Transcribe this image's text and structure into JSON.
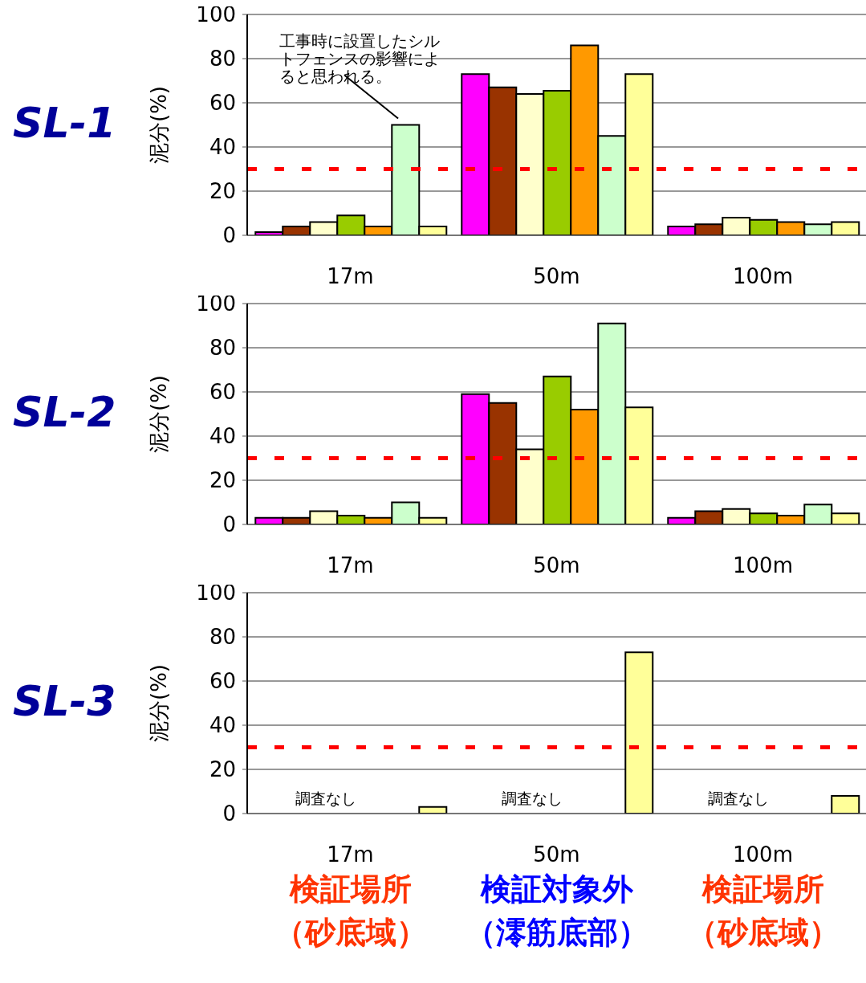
{
  "chart_data": [
    {
      "type": "bar",
      "title": "SL-1",
      "ylabel": "泥分(%)",
      "categories": [
        "17m",
        "50m",
        "100m"
      ],
      "series": [
        {
          "color": "#ff00ff",
          "values": [
            1.5,
            73,
            4
          ]
        },
        {
          "color": "#993300",
          "values": [
            4,
            67,
            5
          ]
        },
        {
          "color": "#ffffcc",
          "values": [
            6,
            64,
            8
          ]
        },
        {
          "color": "#99cc00",
          "values": [
            9,
            65.5,
            7
          ]
        },
        {
          "color": "#ff9900",
          "values": [
            4,
            86,
            6
          ]
        },
        {
          "color": "#ccffcc",
          "values": [
            50,
            45,
            5
          ]
        },
        {
          "color": "#ffff99",
          "values": [
            4,
            73,
            6
          ]
        }
      ],
      "ylim": [
        0,
        100
      ],
      "yticks": [
        0,
        20,
        40,
        60,
        80,
        100
      ],
      "grid": "y",
      "ref_lines": [
        {
          "axis": "y",
          "value": 30,
          "color": "#ff0000",
          "line_style": "dashed"
        }
      ],
      "annotations": [
        "工事時に設置したシルトフェンスの影響によると思われる。"
      ]
    },
    {
      "type": "bar",
      "title": "SL-2",
      "ylabel": "泥分(%)",
      "categories": [
        "17m",
        "50m",
        "100m"
      ],
      "series": [
        {
          "color": "#ff00ff",
          "values": [
            3,
            59,
            3
          ]
        },
        {
          "color": "#993300",
          "values": [
            3,
            55,
            6
          ]
        },
        {
          "color": "#ffffcc",
          "values": [
            6,
            34,
            7
          ]
        },
        {
          "color": "#99cc00",
          "values": [
            4,
            67,
            5
          ]
        },
        {
          "color": "#ff9900",
          "values": [
            3,
            52,
            4
          ]
        },
        {
          "color": "#ccffcc",
          "values": [
            10,
            91,
            9
          ]
        },
        {
          "color": "#ffff99",
          "values": [
            3,
            53,
            5
          ]
        }
      ],
      "ylim": [
        0,
        100
      ],
      "yticks": [
        0,
        20,
        40,
        60,
        80,
        100
      ],
      "grid": "y",
      "ref_lines": [
        {
          "axis": "y",
          "value": 30,
          "color": "#ff0000",
          "line_style": "dashed"
        }
      ]
    },
    {
      "type": "bar",
      "title": "SL-3",
      "ylabel": "泥分(%)",
      "categories": [
        "17m",
        "50m",
        "100m"
      ],
      "series": [
        {
          "color": "#ff00ff",
          "values": [
            null,
            null,
            null
          ]
        },
        {
          "color": "#993300",
          "values": [
            null,
            null,
            null
          ]
        },
        {
          "color": "#ffffcc",
          "values": [
            null,
            null,
            null
          ]
        },
        {
          "color": "#99cc00",
          "values": [
            null,
            null,
            null
          ]
        },
        {
          "color": "#ff9900",
          "values": [
            null,
            null,
            null
          ]
        },
        {
          "color": "#ccffcc",
          "values": [
            null,
            null,
            null
          ]
        },
        {
          "color": "#ffff99",
          "values": [
            3,
            73,
            8
          ]
        }
      ],
      "ylim": [
        0,
        100
      ],
      "yticks": [
        0,
        20,
        40,
        60,
        80,
        100
      ],
      "grid": "y",
      "ref_lines": [
        {
          "axis": "y",
          "value": 30,
          "color": "#ff0000",
          "line_style": "dashed"
        }
      ],
      "annotations": [
        "調査なし",
        "調査なし",
        "調査なし",
        "検証場所（砂底域）",
        "検証対象外（澪筋底部）",
        "検証場所（砂底域）"
      ]
    }
  ]
}
